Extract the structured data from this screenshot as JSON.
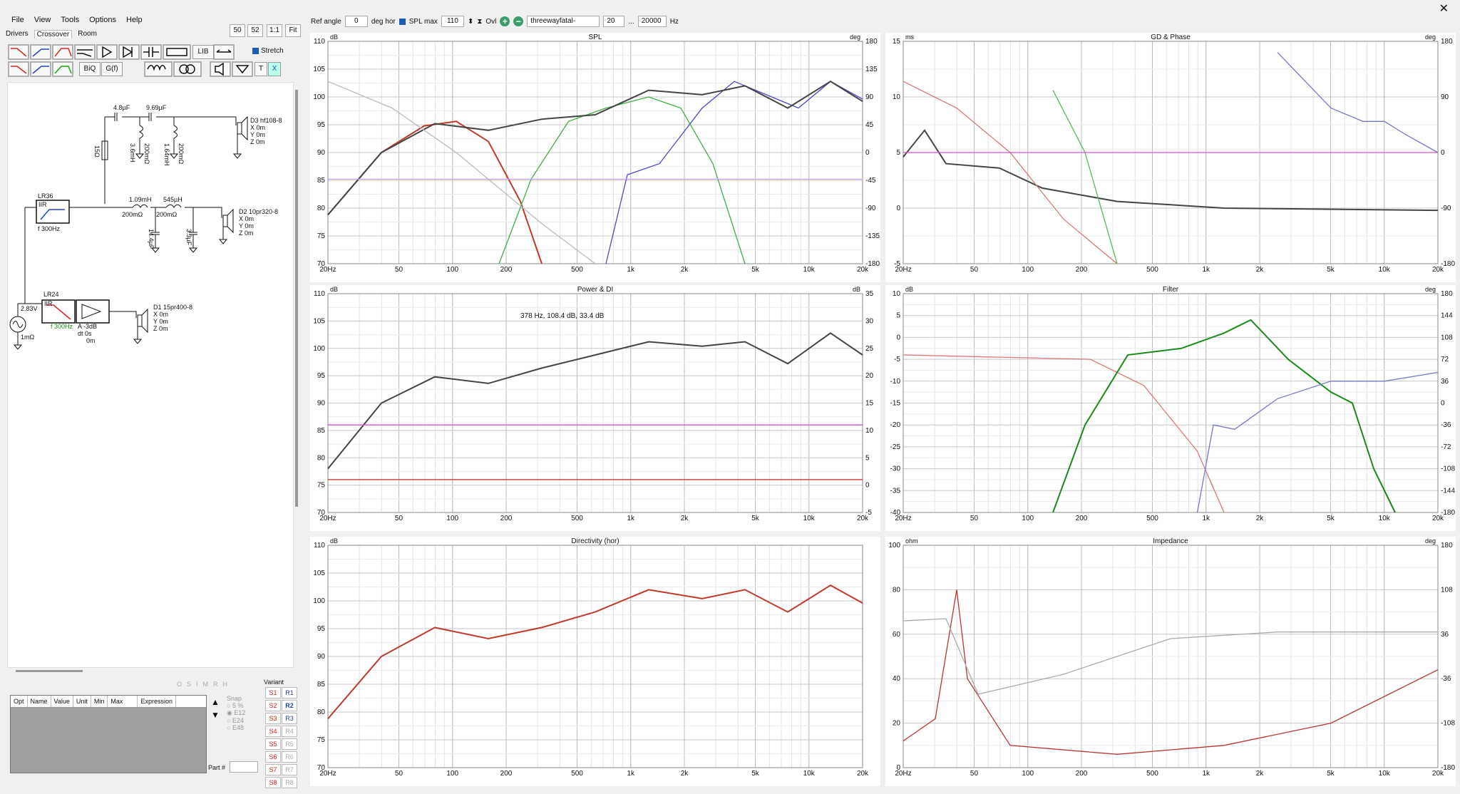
{
  "menu": [
    "File",
    "View",
    "Tools",
    "Options",
    "Help"
  ],
  "tabs": [
    "Drivers",
    "Crossover",
    "Room"
  ],
  "toolbar_right": [
    "50",
    "52",
    "1:1",
    "Fit"
  ],
  "stretch_label": "Stretch",
  "tool_labels": {
    "biq": "BiQ",
    "gf": "G(f)",
    "lib": "LIB",
    "t": "T",
    "x": "X"
  },
  "topbar": {
    "ref_angle_label": "Ref angle",
    "ref_angle": "0",
    "deg_hor": "deg hor",
    "spl_max_label": "SPL max",
    "spl_max": "110",
    "ovl": "Ovl",
    "project": "threewayfatal-passiveX",
    "f_lo": "20",
    "dots": "...",
    "f_hi": "20000",
    "hz": "Hz"
  },
  "schematic": {
    "labels": [
      "4.8µF",
      "9.69µF",
      "3.6mH",
      "200mΩ",
      "1.64mH",
      "200mΩ",
      "15Ω",
      "D3 hf108-8",
      "X 0m",
      "Y 0m",
      "Z 0m",
      "LR36",
      "IIR",
      "f  300Hz",
      "1.09mH",
      "200mΩ",
      "545µH",
      "200mΩ",
      "14.4µF",
      "3.3µF",
      "D2 10pr320-8",
      "X 0m",
      "Y 0m",
      "Z 0m",
      "LR24",
      "IIR",
      "f  300Hz",
      "A  -3dB",
      "dt 0s",
      "0m",
      "D1 15pr400-8",
      "X 0m",
      "Y 0m",
      "Z 0m",
      "2.83V",
      "1mΩ"
    ]
  },
  "param_table": {
    "headers": [
      "Opt",
      "Name",
      "Value",
      "Unit",
      "Min",
      "Max",
      "Expression"
    ]
  },
  "snap": {
    "title": "Snap",
    "options": [
      "5 %",
      "E12",
      "E24",
      "E48"
    ],
    "part_label": "Part #"
  },
  "variant": {
    "title": "Variant",
    "s": [
      "S1",
      "S2",
      "S3",
      "S4",
      "S5",
      "S6",
      "S7",
      "S8"
    ],
    "r": [
      "R1",
      "R2",
      "R3",
      "R4",
      "R5",
      "R6",
      "R7",
      "R8"
    ]
  },
  "misc_buttons": [
    "O",
    "S",
    "I",
    "M",
    "R",
    "H"
  ],
  "charts": [
    {
      "id": "spl",
      "title": "SPL",
      "unit_left": "dB",
      "unit_right": "deg",
      "yleft": [
        "110",
        "105",
        "100",
        "95",
        "90",
        "85",
        "80",
        "75",
        "70"
      ],
      "yright": [
        "180",
        "135",
        "90",
        "45",
        "0",
        "-45",
        "-90",
        "-135",
        "-180"
      ]
    },
    {
      "id": "gd",
      "title": "GD & Phase",
      "unit_left": "ms",
      "unit_right": "deg",
      "yleft": [
        "15",
        "10",
        "5",
        "0",
        "-5"
      ],
      "yright": [
        "180",
        "90",
        "0",
        "-90",
        "-180"
      ]
    },
    {
      "id": "power",
      "title": "Power & DI",
      "unit_left": "dB",
      "unit_right": "dB",
      "yleft": [
        "110",
        "105",
        "100",
        "95",
        "90",
        "85",
        "80",
        "75",
        "70"
      ],
      "yright": [
        "35",
        "30",
        "25",
        "20",
        "15",
        "10",
        "5",
        "0",
        "-5"
      ],
      "annotation": "378 Hz, 108.4 dB, 33.4 dB"
    },
    {
      "id": "filter",
      "title": "Filter",
      "unit_left": "dB",
      "unit_right": "deg",
      "yleft": [
        "10",
        "5",
        "0",
        "-5",
        "-10",
        "-15",
        "-20",
        "-25",
        "-30",
        "-35",
        "-40"
      ],
      "yright": [
        "180",
        "144",
        "108",
        "72",
        "36",
        "0",
        "-36",
        "-72",
        "-108",
        "-144",
        "-180"
      ]
    },
    {
      "id": "directivity",
      "title": "Directivity (hor)",
      "unit_left": "dB",
      "unit_right": "",
      "yleft": [
        "110",
        "105",
        "100",
        "95",
        "90",
        "85",
        "80",
        "75",
        "70"
      ],
      "yright": []
    },
    {
      "id": "impedance",
      "title": "Impedance",
      "unit_left": "ohm",
      "unit_right": "deg",
      "yleft": [
        "100",
        "80",
        "60",
        "40",
        "20",
        "0"
      ],
      "yright": [
        "180",
        "108",
        "36",
        "-36",
        "-108",
        "-180"
      ]
    }
  ],
  "xticks": [
    "20Hz",
    "50",
    "100",
    "200",
    "500",
    "1k",
    "2k",
    "5k",
    "10k",
    "20k"
  ]
}
